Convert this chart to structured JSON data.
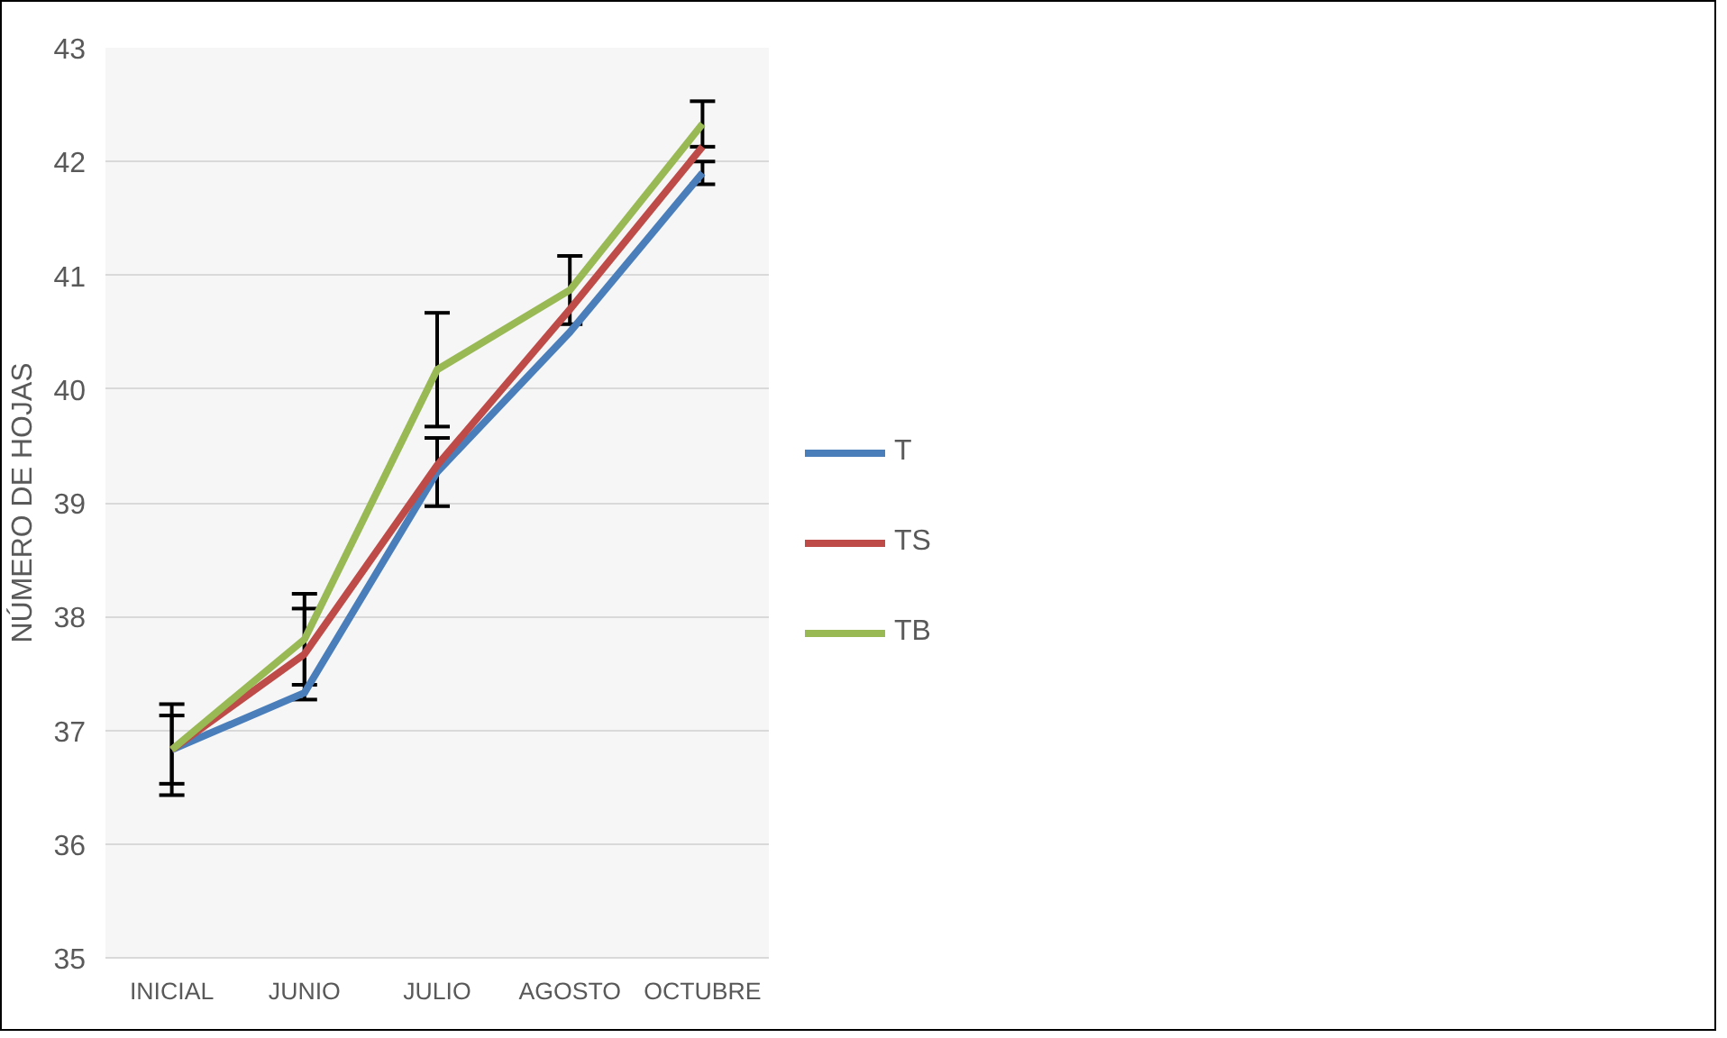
{
  "chart_data": {
    "type": "line",
    "ylabel": "NÚMERO DE HOJAS",
    "categories": [
      "INICIAL",
      "JUNIO",
      "JULIO",
      "AGOSTO",
      "OCTUBRE"
    ],
    "ylim": [
      35,
      43
    ],
    "yticks": [
      35,
      36,
      37,
      38,
      39,
      40,
      41,
      42,
      43
    ],
    "grid": "y",
    "legend": "right",
    "marker": "none",
    "line_style": "solid",
    "series": [
      {
        "name": "T",
        "color": "#4a7ebb",
        "values": [
          36.83,
          37.33,
          39.27,
          40.5,
          41.9
        ],
        "errors": [
          0.3,
          null,
          0.3,
          null,
          0.1
        ]
      },
      {
        "name": "TS",
        "color": "#be4b48",
        "values": [
          36.83,
          37.67,
          39.33,
          40.7,
          42.13
        ],
        "errors": [
          null,
          0.4,
          null,
          null,
          null
        ]
      },
      {
        "name": "TB",
        "color": "#98b954",
        "values": [
          36.83,
          37.8,
          40.17,
          40.87,
          42.33
        ],
        "errors": [
          0.4,
          0.4,
          0.5,
          0.3,
          0.2
        ]
      }
    ]
  }
}
